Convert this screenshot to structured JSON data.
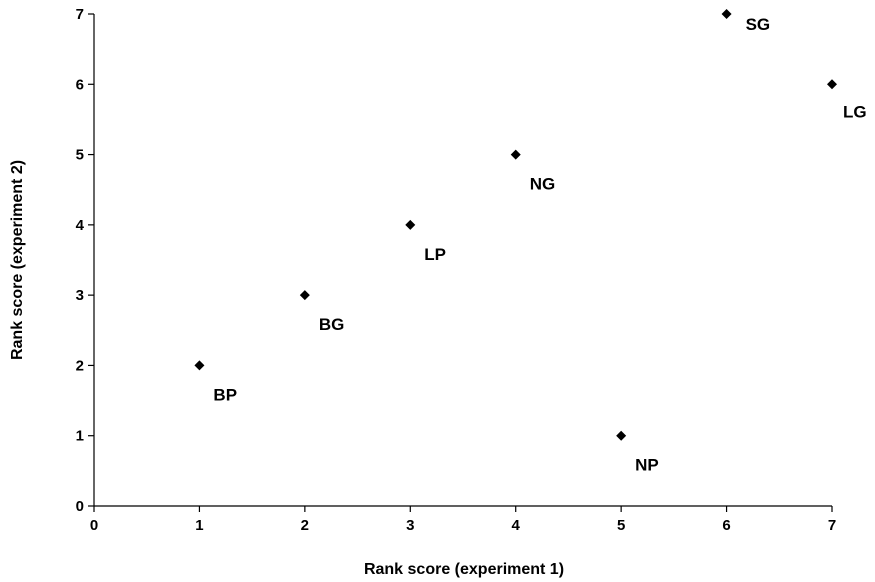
{
  "chart_data": {
    "type": "scatter",
    "title": "",
    "xlabel": "Rank score (experiment 1)",
    "ylabel": "Rank score (experiment 2)",
    "xlim": [
      0,
      7
    ],
    "ylim": [
      0,
      7
    ],
    "xticks": [
      "0",
      "1",
      "2",
      "3",
      "4",
      "5",
      "6",
      "7"
    ],
    "yticks": [
      "0",
      "1",
      "2",
      "3",
      "4",
      "5",
      "6",
      "7"
    ],
    "grid": false,
    "legend": "none",
    "marker": "diamond",
    "marker_color": "#000000",
    "points": [
      {
        "label": "BP",
        "x": 1,
        "y": 2
      },
      {
        "label": "BG",
        "x": 2,
        "y": 3
      },
      {
        "label": "LP",
        "x": 3,
        "y": 4
      },
      {
        "label": "NG",
        "x": 4,
        "y": 5
      },
      {
        "label": "NP",
        "x": 5,
        "y": 1
      },
      {
        "label": "SG",
        "x": 6,
        "y": 7
      },
      {
        "label": "LG",
        "x": 7,
        "y": 6
      }
    ]
  }
}
